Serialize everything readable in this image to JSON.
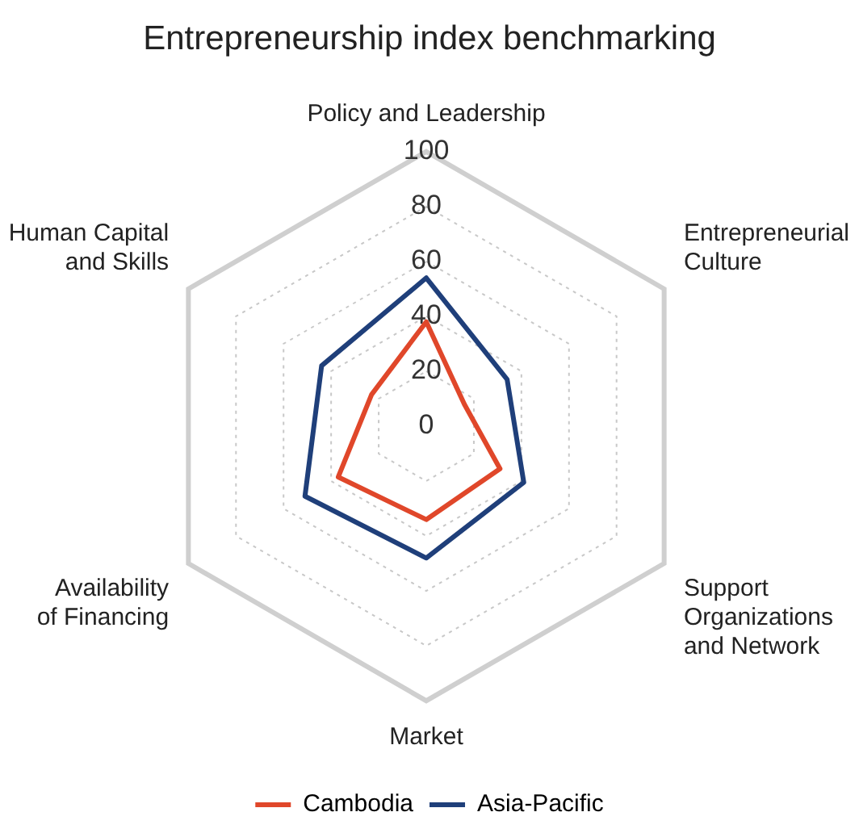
{
  "chart_data": {
    "type": "radar",
    "title": "Entrepreneurship index benchmarking",
    "categories": [
      "Policy and Leadership",
      "Entrepreneurial\nCulture",
      "Support\nOrganizations\nand Network",
      "Market",
      "Availability\nof Financing",
      "Human Capital\nand Skills"
    ],
    "series": [
      {
        "name": "Cambodia",
        "color": "#e0472a",
        "values": [
          38,
          16,
          31,
          34,
          37,
          23
        ]
      },
      {
        "name": "Asia-Pacific",
        "color": "#1f3f7a",
        "values": [
          54,
          34,
          41,
          48,
          51,
          44
        ]
      }
    ],
    "ylim": [
      0,
      100
    ],
    "yticks": [
      0,
      20,
      40,
      60,
      80,
      100
    ],
    "grid": true,
    "legend": "bottom",
    "marker": "none",
    "line_style": "solid"
  }
}
